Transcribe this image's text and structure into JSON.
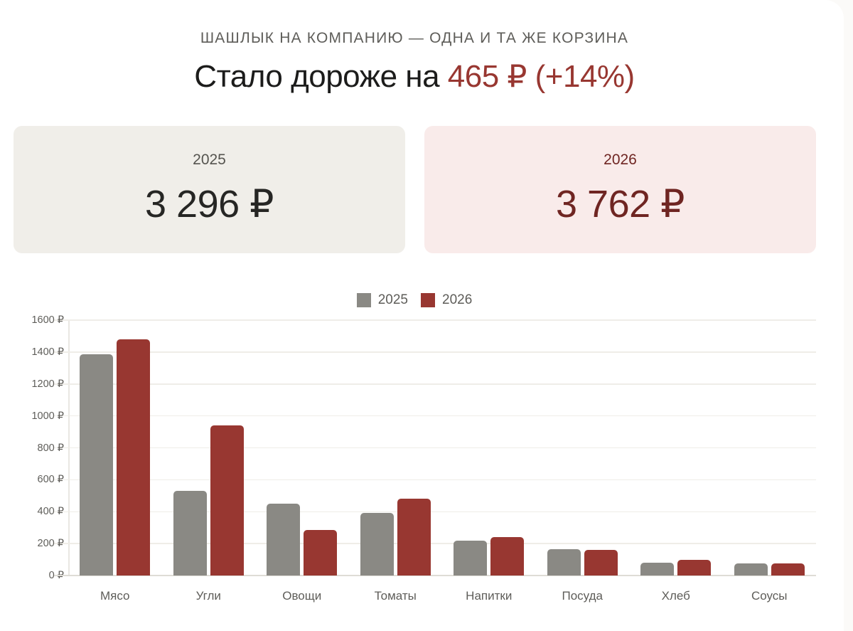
{
  "header": {
    "kicker": "ШАШЛЫК НА КОМПАНИЮ — ОДНА И ТА ЖЕ КОРЗИНА",
    "headline_prefix": "Стало дороже на ",
    "headline_accent": "465 ₽ (+14%)"
  },
  "stats": [
    {
      "year": "2025",
      "value": "3 296 ₽"
    },
    {
      "year": "2026",
      "value": "3 762 ₽"
    }
  ],
  "colors": {
    "series_2025": "#8a8984",
    "series_2026": "#983731",
    "accent": "#983731"
  },
  "legend": [
    {
      "label": "2025",
      "color": "#8a8984"
    },
    {
      "label": "2026",
      "color": "#983731"
    }
  ],
  "chart_data": {
    "type": "bar",
    "title": "Шашлык на компанию — одна и та же корзина",
    "xlabel": "",
    "ylabel": "",
    "categories": [
      "Мясо",
      "Угли",
      "Овощи",
      "Томаты",
      "Напитки",
      "Посуда",
      "Хлеб",
      "Соусы"
    ],
    "series": [
      {
        "name": "2025",
        "color": "#8a8984",
        "values": [
          1385,
          530,
          450,
          390,
          220,
          165,
          80,
          75
        ]
      },
      {
        "name": "2026",
        "color": "#983731",
        "values": [
          1480,
          940,
          285,
          480,
          240,
          160,
          100,
          75
        ]
      }
    ],
    "ylim": [
      0,
      1600
    ],
    "y_ticks": [
      "0 ₽",
      "200 ₽",
      "400 ₽",
      "600 ₽",
      "800 ₽",
      "1000 ₽",
      "1200 ₽",
      "1400 ₽",
      "1600 ₽"
    ],
    "y_tick_values": [
      0,
      200,
      400,
      600,
      800,
      1000,
      1200,
      1400,
      1600
    ],
    "grid": true,
    "legend_position": "top"
  }
}
